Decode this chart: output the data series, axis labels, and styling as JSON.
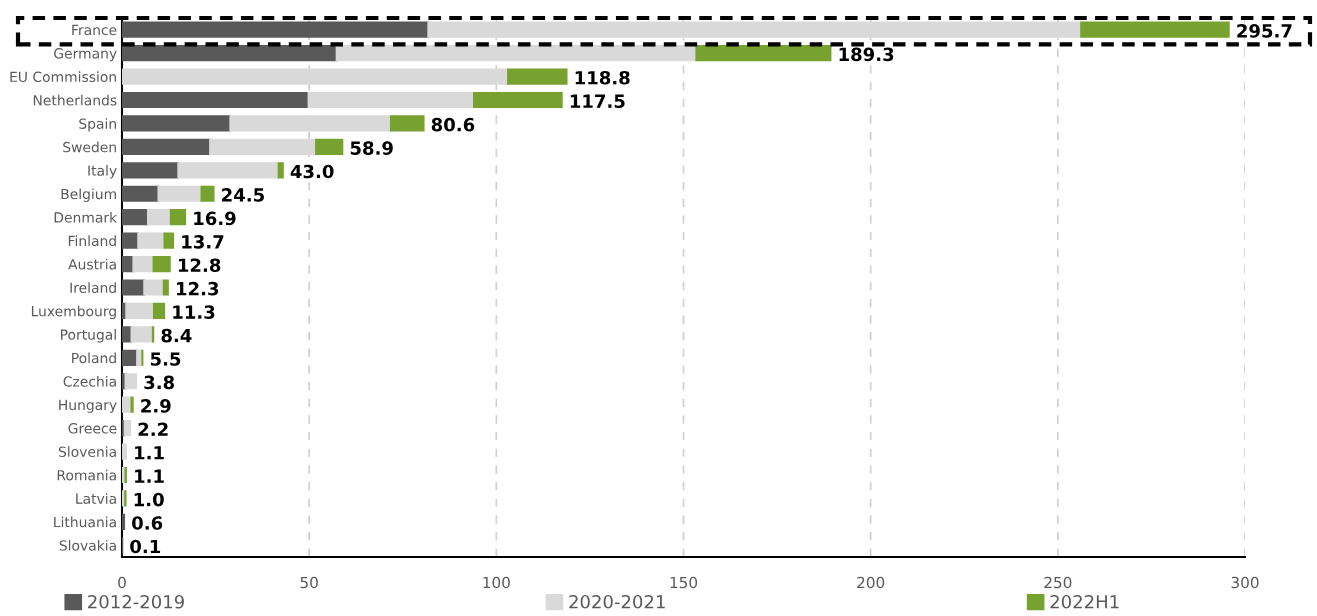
{
  "chart_data": {
    "type": "bar",
    "orientation": "horizontal",
    "stacked": true,
    "categories": [
      "France",
      "Germany",
      "EU Commission",
      "Netherlands",
      "Spain",
      "Sweden",
      "Italy",
      "Belgium",
      "Denmark",
      "Finland",
      "Austria",
      "Ireland",
      "Luxembourg",
      "Portugal",
      "Poland",
      "Czechia",
      "Hungary",
      "Greece",
      "Slovenia",
      "Romania",
      "Latvia",
      "Lithuania",
      "Slovakia"
    ],
    "series": [
      {
        "name": "2012-2019",
        "color": "#595959",
        "values": [
          81.8,
          57.3,
          0,
          49.8,
          28.9,
          23.5,
          15.0,
          9.7,
          6.9,
          4.3,
          3.0,
          5.9,
          1.1,
          2.5,
          4.0,
          0.9,
          0,
          0.7,
          0,
          0,
          0,
          0.6,
          0.1
        ]
      },
      {
        "name": "2020-2021",
        "color": "#d9d9d9",
        "values": [
          174.4,
          96.1,
          103.1,
          44.2,
          42.9,
          28.3,
          26.8,
          11.5,
          6.1,
          7.0,
          5.4,
          5.2,
          7.4,
          5.7,
          1.4,
          2.9,
          2.5,
          1.5,
          1.1,
          0.9,
          0.8,
          0,
          0
        ]
      },
      {
        "name": "2022H1",
        "color": "#77a22f",
        "values": [
          39.5,
          35.9,
          15.7,
          23.5,
          8.8,
          7.1,
          1.2,
          3.3,
          3.9,
          2.4,
          4.4,
          1.2,
          2.8,
          0.2,
          0.1,
          0,
          0.4,
          0,
          0,
          0.2,
          0.2,
          0,
          0
        ]
      }
    ],
    "totals": [
      "295.7",
      "189.3",
      "118.8",
      "117.5",
      "80.6",
      "58.9",
      "43.0",
      "24.5",
      "16.9",
      "13.7",
      "12.8",
      "12.3",
      "11.3",
      "8.4",
      "5.5",
      "3.8",
      "2.9",
      "2.2",
      "1.1",
      "1.1",
      "1.0",
      "0.6",
      "0.1"
    ],
    "xlim": [
      0,
      300
    ],
    "xticks": [
      0,
      50,
      100,
      150,
      200,
      250,
      300
    ],
    "grid": "x",
    "legend": "bottom"
  }
}
